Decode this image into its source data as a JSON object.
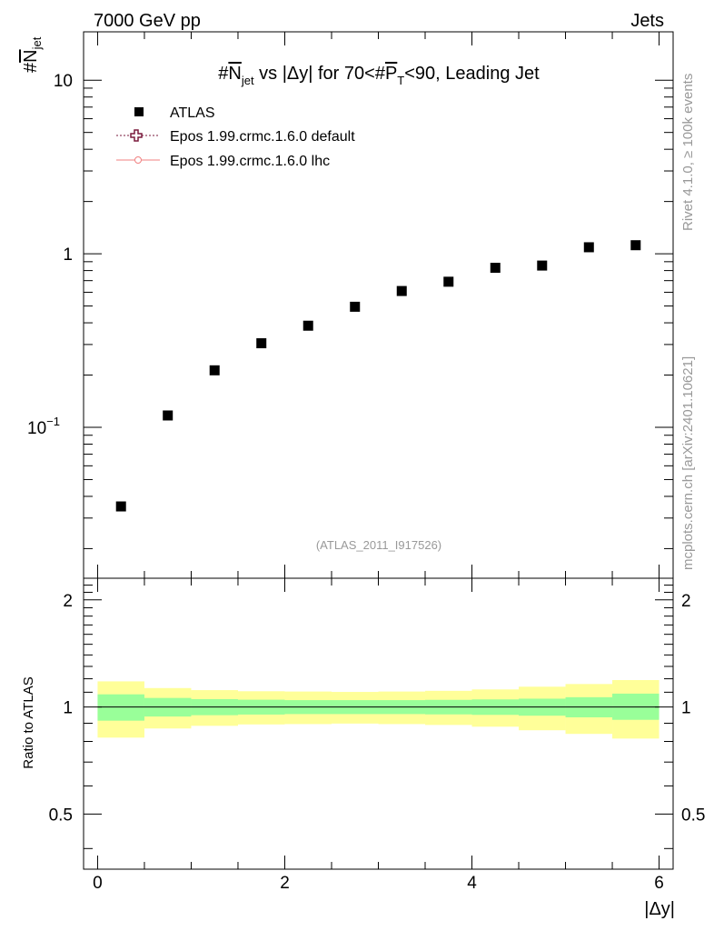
{
  "header": {
    "left": "7000 GeV pp",
    "right": "Jets"
  },
  "side": {
    "rivet": "Rivet 4.1.0, ≥ 100k events",
    "mcplots": "mcplots.cern.ch [arXiv:2401.10621]"
  },
  "colors": {
    "ratio_inner": "#99ff99",
    "ratio_outer": "#ffff99",
    "epos_default": "#7a1a3c",
    "epos_lhc": "#f08080"
  },
  "chart_data": [
    {
      "type": "scatter",
      "title": "#N̅jet vs |Δy| for 70<#P̅T<90, Leading Jet",
      "title_parts": {
        "pre": "#",
        "n": "N",
        "jet": "jet",
        "mid": " vs |Δy| for 70<#",
        "p": "P",
        "t": "T",
        "post": "<90, Leading Jet"
      },
      "ylabel": {
        "hash": "#",
        "n": "N",
        "jet": "jet"
      },
      "yscale": "log",
      "ylim": [
        0.0135,
        19
      ],
      "xlim": [
        -0.15,
        6.15
      ],
      "yticks": [
        {
          "value": 0.1,
          "base": "10",
          "exp": "−1"
        },
        {
          "value": 1,
          "base": "1",
          "exp": ""
        },
        {
          "value": 10,
          "base": "10",
          "exp": ""
        }
      ],
      "reference": "(ATLAS_2011_I917526)",
      "legend": [
        {
          "label": "ATLAS",
          "marker": "square"
        },
        {
          "label": "Epos 1.99.crmc.1.6.0 default",
          "marker": "open-cross"
        },
        {
          "label": "Epos 1.99.crmc.1.6.0 lhc",
          "marker": "circle-line"
        }
      ],
      "legend_position": "top-left",
      "series": [
        {
          "name": "ATLAS",
          "x": [
            0.25,
            0.75,
            1.25,
            1.75,
            2.25,
            2.75,
            3.25,
            3.75,
            4.25,
            4.75,
            5.25,
            5.75
          ],
          "y": [
            0.035,
            0.117,
            0.213,
            0.305,
            0.385,
            0.495,
            0.61,
            0.69,
            0.83,
            0.855,
            1.09,
            1.12
          ]
        }
      ]
    },
    {
      "type": "area",
      "ylabel": "Ratio to ATLAS",
      "xlabel": "|Δy|",
      "xlim": [
        -0.15,
        6.15
      ],
      "ylim": [
        0.35,
        2.3
      ],
      "xticks": [
        0,
        2,
        4,
        6
      ],
      "yticks": [
        0.5,
        1,
        2
      ],
      "bins": [
        [
          0,
          0.5
        ],
        [
          0.5,
          1
        ],
        [
          1,
          1.5
        ],
        [
          1.5,
          2
        ],
        [
          2,
          2.5
        ],
        [
          2.5,
          3
        ],
        [
          3,
          3.5
        ],
        [
          3.5,
          4
        ],
        [
          4,
          4.5
        ],
        [
          4.5,
          5
        ],
        [
          5,
          5.5
        ],
        [
          5.5,
          6
        ]
      ],
      "inner_band": {
        "lo": [
          0.915,
          0.94,
          0.948,
          0.952,
          0.955,
          0.955,
          0.955,
          0.953,
          0.95,
          0.945,
          0.935,
          0.92
        ],
        "hi": [
          1.085,
          1.06,
          1.052,
          1.048,
          1.045,
          1.045,
          1.045,
          1.047,
          1.05,
          1.055,
          1.065,
          1.09
        ]
      },
      "outer_band": {
        "lo": [
          0.82,
          0.87,
          0.885,
          0.893,
          0.895,
          0.898,
          0.895,
          0.89,
          0.88,
          0.86,
          0.84,
          0.815
        ],
        "hi": [
          1.18,
          1.13,
          1.115,
          1.107,
          1.105,
          1.102,
          1.105,
          1.11,
          1.12,
          1.14,
          1.16,
          1.19
        ]
      },
      "reference_line": 1
    }
  ]
}
